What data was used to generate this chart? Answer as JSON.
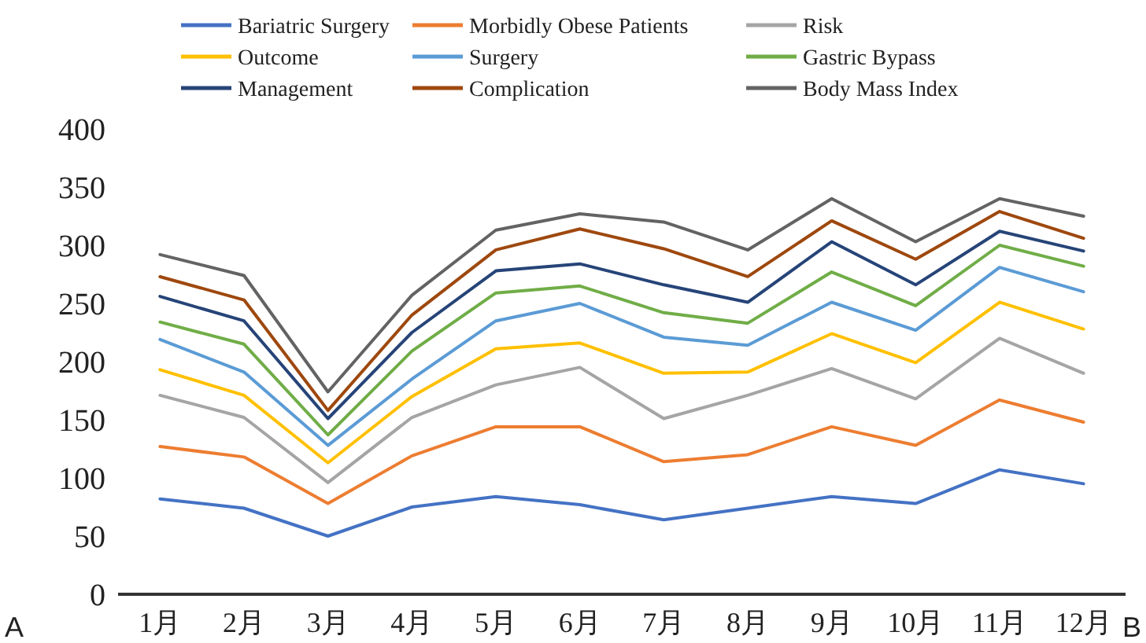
{
  "chart_data": {
    "type": "line",
    "categories": [
      "1月",
      "2月",
      "3月",
      "4月",
      "5月",
      "6月",
      "7月",
      "8月",
      "9月",
      "10月",
      "11月",
      "12月"
    ],
    "ylim": [
      0,
      400
    ],
    "yticks": [
      0,
      50,
      100,
      150,
      200,
      250,
      300,
      350,
      400
    ],
    "grid": false,
    "legend": "top",
    "marker": "none",
    "line_style": "solid",
    "annotations": [
      "A",
      "B"
    ],
    "series": [
      {
        "name": "Bariatric Surgery",
        "color": "#4472c4",
        "values": [
          82,
          74,
          50,
          75,
          84,
          77,
          64,
          74,
          84,
          78,
          107,
          95
        ]
      },
      {
        "name": "Morbidly Obese Patients",
        "color": "#ed7d31",
        "values": [
          127,
          118,
          78,
          119,
          144,
          144,
          114,
          120,
          144,
          128,
          167,
          148
        ]
      },
      {
        "name": "Risk",
        "color": "#a5a5a5",
        "values": [
          171,
          152,
          96,
          152,
          180,
          195,
          151,
          171,
          194,
          168,
          220,
          190
        ]
      },
      {
        "name": "Outcome",
        "color": "#ffc000",
        "values": [
          193,
          171,
          113,
          170,
          211,
          216,
          190,
          191,
          224,
          199,
          251,
          228
        ]
      },
      {
        "name": "Surgery",
        "color": "#5b9bd5",
        "values": [
          219,
          191,
          128,
          185,
          235,
          250,
          221,
          214,
          251,
          227,
          281,
          260
        ]
      },
      {
        "name": "Gastric Bypass",
        "color": "#70ad47",
        "values": [
          234,
          215,
          137,
          209,
          259,
          265,
          242,
          233,
          277,
          248,
          300,
          282
        ]
      },
      {
        "name": "Management",
        "color": "#264478",
        "values": [
          256,
          235,
          151,
          225,
          278,
          284,
          266,
          251,
          303,
          266,
          312,
          295
        ]
      },
      {
        "name": "Complication",
        "color": "#9e480e",
        "values": [
          273,
          253,
          158,
          240,
          296,
          314,
          297,
          273,
          321,
          288,
          329,
          306
        ]
      },
      {
        "name": "Body Mass Index",
        "color": "#636363",
        "values": [
          292,
          274,
          174,
          257,
          313,
          327,
          320,
          296,
          340,
          303,
          340,
          325
        ]
      }
    ]
  }
}
